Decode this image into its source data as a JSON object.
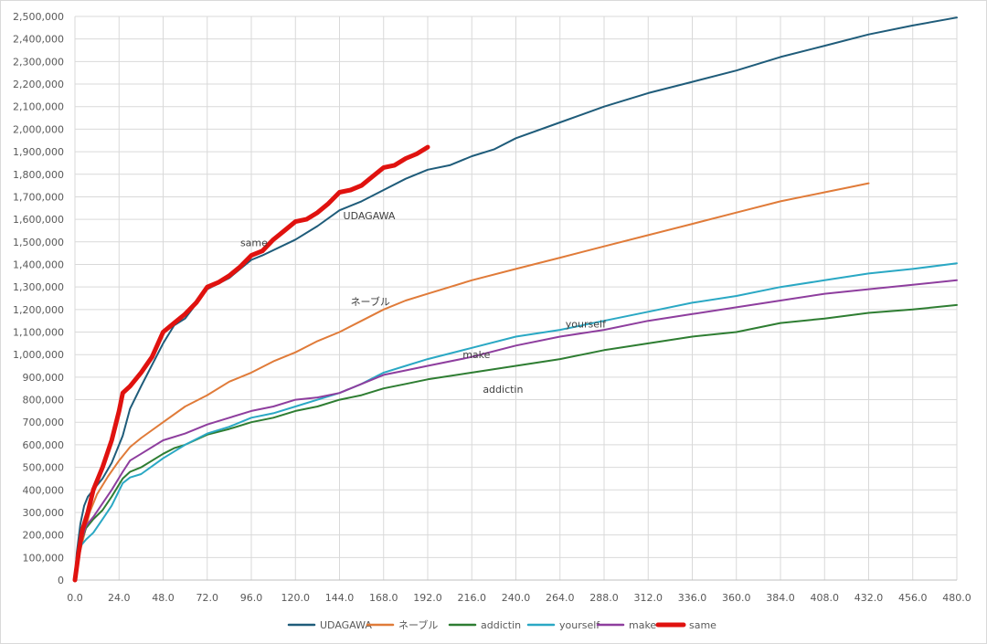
{
  "chart_data": {
    "type": "line",
    "title": "",
    "xlabel": "",
    "ylabel": "",
    "xlim": [
      0,
      480
    ],
    "ylim": [
      0,
      2500000
    ],
    "x_ticks": [
      "0.0",
      "24.0",
      "48.0",
      "72.0",
      "96.0",
      "120.0",
      "144.0",
      "168.0",
      "192.0",
      "216.0",
      "240.0",
      "264.0",
      "288.0",
      "312.0",
      "336.0",
      "360.0",
      "384.0",
      "408.0",
      "432.0",
      "456.0",
      "480.0"
    ],
    "y_ticks": [
      "0",
      "100,000",
      "200,000",
      "300,000",
      "400,000",
      "500,000",
      "600,000",
      "700,000",
      "800,000",
      "900,000",
      "1,000,000",
      "1,100,000",
      "1,200,000",
      "1,300,000",
      "1,400,000",
      "1,500,000",
      "1,600,000",
      "1,700,000",
      "1,800,000",
      "1,900,000",
      "2,000,000",
      "2,100,000",
      "2,200,000",
      "2,300,000",
      "2,400,000",
      "2,500,000"
    ],
    "grid": true,
    "legend_position": "bottom",
    "series": [
      {
        "name": "UDAGAWA",
        "color": "#1f5c7a",
        "width": 2,
        "label_text": "UDAGAWA",
        "label_at": [
          146,
          1600000
        ],
        "points": [
          [
            0,
            0
          ],
          [
            1,
            120000
          ],
          [
            3,
            250000
          ],
          [
            5,
            330000
          ],
          [
            7,
            370000
          ],
          [
            10,
            400000
          ],
          [
            15,
            450000
          ],
          [
            20,
            520000
          ],
          [
            26,
            640000
          ],
          [
            30,
            760000
          ],
          [
            36,
            860000
          ],
          [
            48,
            1050000
          ],
          [
            54,
            1130000
          ],
          [
            60,
            1160000
          ],
          [
            72,
            1290000
          ],
          [
            84,
            1340000
          ],
          [
            96,
            1420000
          ],
          [
            102,
            1440000
          ],
          [
            120,
            1510000
          ],
          [
            132,
            1570000
          ],
          [
            144,
            1640000
          ],
          [
            156,
            1680000
          ],
          [
            168,
            1730000
          ],
          [
            180,
            1780000
          ],
          [
            192,
            1820000
          ],
          [
            204,
            1840000
          ],
          [
            216,
            1880000
          ],
          [
            228,
            1910000
          ],
          [
            240,
            1960000
          ],
          [
            264,
            2030000
          ],
          [
            288,
            2100000
          ],
          [
            312,
            2160000
          ],
          [
            336,
            2210000
          ],
          [
            360,
            2260000
          ],
          [
            384,
            2320000
          ],
          [
            408,
            2370000
          ],
          [
            432,
            2420000
          ],
          [
            456,
            2460000
          ],
          [
            480,
            2495000
          ]
        ]
      },
      {
        "name": "ネーブル",
        "color": "#e07b39",
        "width": 2,
        "label_text": "ネーブル",
        "label_at": [
          150,
          1220000
        ],
        "points": [
          [
            0,
            0
          ],
          [
            2,
            100000
          ],
          [
            5,
            200000
          ],
          [
            8,
            300000
          ],
          [
            12,
            380000
          ],
          [
            18,
            460000
          ],
          [
            24,
            530000
          ],
          [
            30,
            590000
          ],
          [
            36,
            630000
          ],
          [
            48,
            700000
          ],
          [
            60,
            770000
          ],
          [
            72,
            820000
          ],
          [
            84,
            880000
          ],
          [
            96,
            920000
          ],
          [
            108,
            970000
          ],
          [
            120,
            1010000
          ],
          [
            132,
            1060000
          ],
          [
            144,
            1100000
          ],
          [
            156,
            1150000
          ],
          [
            168,
            1200000
          ],
          [
            180,
            1240000
          ],
          [
            192,
            1270000
          ],
          [
            216,
            1330000
          ],
          [
            240,
            1380000
          ],
          [
            264,
            1430000
          ],
          [
            288,
            1480000
          ],
          [
            312,
            1530000
          ],
          [
            336,
            1580000
          ],
          [
            360,
            1630000
          ],
          [
            384,
            1680000
          ],
          [
            408,
            1720000
          ],
          [
            420,
            1740000
          ],
          [
            432,
            1760000
          ]
        ]
      },
      {
        "name": "addictin",
        "color": "#2e7d32",
        "width": 2,
        "label_text": "addictin",
        "label_at": [
          222,
          830000
        ],
        "points": [
          [
            0,
            0
          ],
          [
            3,
            160000
          ],
          [
            6,
            230000
          ],
          [
            10,
            270000
          ],
          [
            15,
            310000
          ],
          [
            20,
            370000
          ],
          [
            26,
            450000
          ],
          [
            30,
            480000
          ],
          [
            36,
            500000
          ],
          [
            48,
            560000
          ],
          [
            54,
            585000
          ],
          [
            60,
            600000
          ],
          [
            72,
            645000
          ],
          [
            84,
            670000
          ],
          [
            96,
            700000
          ],
          [
            108,
            720000
          ],
          [
            120,
            750000
          ],
          [
            132,
            770000
          ],
          [
            144,
            800000
          ],
          [
            156,
            820000
          ],
          [
            168,
            850000
          ],
          [
            180,
            870000
          ],
          [
            192,
            890000
          ],
          [
            216,
            920000
          ],
          [
            240,
            950000
          ],
          [
            264,
            980000
          ],
          [
            288,
            1020000
          ],
          [
            312,
            1050000
          ],
          [
            336,
            1080000
          ],
          [
            360,
            1100000
          ],
          [
            384,
            1140000
          ],
          [
            408,
            1160000
          ],
          [
            432,
            1185000
          ],
          [
            456,
            1200000
          ],
          [
            480,
            1220000
          ]
        ]
      },
      {
        "name": "yourself",
        "color": "#2aa8c4",
        "width": 2,
        "label_text": "yourself",
        "label_at": [
          267,
          1120000
        ],
        "points": [
          [
            0,
            0
          ],
          [
            3,
            150000
          ],
          [
            6,
            180000
          ],
          [
            10,
            210000
          ],
          [
            15,
            270000
          ],
          [
            20,
            330000
          ],
          [
            26,
            430000
          ],
          [
            30,
            455000
          ],
          [
            36,
            470000
          ],
          [
            48,
            540000
          ],
          [
            54,
            570000
          ],
          [
            60,
            600000
          ],
          [
            72,
            650000
          ],
          [
            84,
            680000
          ],
          [
            96,
            720000
          ],
          [
            108,
            740000
          ],
          [
            120,
            770000
          ],
          [
            132,
            800000
          ],
          [
            144,
            830000
          ],
          [
            156,
            870000
          ],
          [
            168,
            920000
          ],
          [
            180,
            950000
          ],
          [
            192,
            980000
          ],
          [
            216,
            1030000
          ],
          [
            240,
            1080000
          ],
          [
            264,
            1110000
          ],
          [
            288,
            1150000
          ],
          [
            312,
            1190000
          ],
          [
            336,
            1230000
          ],
          [
            360,
            1260000
          ],
          [
            384,
            1300000
          ],
          [
            408,
            1330000
          ],
          [
            432,
            1360000
          ],
          [
            456,
            1380000
          ],
          [
            480,
            1405000
          ]
        ]
      },
      {
        "name": "make",
        "color": "#8e3e9e",
        "width": 2,
        "label_text": "make",
        "label_at": [
          211,
          985000
        ],
        "points": [
          [
            0,
            0
          ],
          [
            3,
            160000
          ],
          [
            6,
            240000
          ],
          [
            10,
            280000
          ],
          [
            15,
            340000
          ],
          [
            20,
            400000
          ],
          [
            26,
            480000
          ],
          [
            30,
            530000
          ],
          [
            36,
            560000
          ],
          [
            48,
            620000
          ],
          [
            60,
            650000
          ],
          [
            72,
            690000
          ],
          [
            84,
            720000
          ],
          [
            96,
            750000
          ],
          [
            108,
            770000
          ],
          [
            120,
            800000
          ],
          [
            132,
            810000
          ],
          [
            144,
            830000
          ],
          [
            156,
            870000
          ],
          [
            168,
            910000
          ],
          [
            180,
            930000
          ],
          [
            192,
            950000
          ],
          [
            216,
            990000
          ],
          [
            240,
            1040000
          ],
          [
            264,
            1080000
          ],
          [
            288,
            1110000
          ],
          [
            312,
            1150000
          ],
          [
            336,
            1180000
          ],
          [
            360,
            1210000
          ],
          [
            384,
            1240000
          ],
          [
            408,
            1270000
          ],
          [
            432,
            1290000
          ],
          [
            456,
            1310000
          ],
          [
            480,
            1330000
          ]
        ]
      },
      {
        "name": "same",
        "color": "#e0120f",
        "width": 5,
        "label_text": "same",
        "label_at": [
          90,
          1480000
        ],
        "points": [
          [
            0,
            0
          ],
          [
            2,
            120000
          ],
          [
            4,
            220000
          ],
          [
            7,
            300000
          ],
          [
            10,
            400000
          ],
          [
            15,
            500000
          ],
          [
            20,
            620000
          ],
          [
            24,
            750000
          ],
          [
            26,
            830000
          ],
          [
            30,
            860000
          ],
          [
            36,
            920000
          ],
          [
            42,
            990000
          ],
          [
            48,
            1100000
          ],
          [
            54,
            1140000
          ],
          [
            60,
            1180000
          ],
          [
            66,
            1230000
          ],
          [
            72,
            1300000
          ],
          [
            78,
            1320000
          ],
          [
            84,
            1350000
          ],
          [
            90,
            1390000
          ],
          [
            96,
            1440000
          ],
          [
            102,
            1460000
          ],
          [
            108,
            1510000
          ],
          [
            114,
            1550000
          ],
          [
            120,
            1590000
          ],
          [
            126,
            1600000
          ],
          [
            132,
            1630000
          ],
          [
            138,
            1670000
          ],
          [
            144,
            1720000
          ],
          [
            150,
            1730000
          ],
          [
            156,
            1750000
          ],
          [
            162,
            1790000
          ],
          [
            168,
            1830000
          ],
          [
            174,
            1840000
          ],
          [
            180,
            1870000
          ],
          [
            186,
            1890000
          ],
          [
            192,
            1920000
          ]
        ]
      }
    ]
  }
}
